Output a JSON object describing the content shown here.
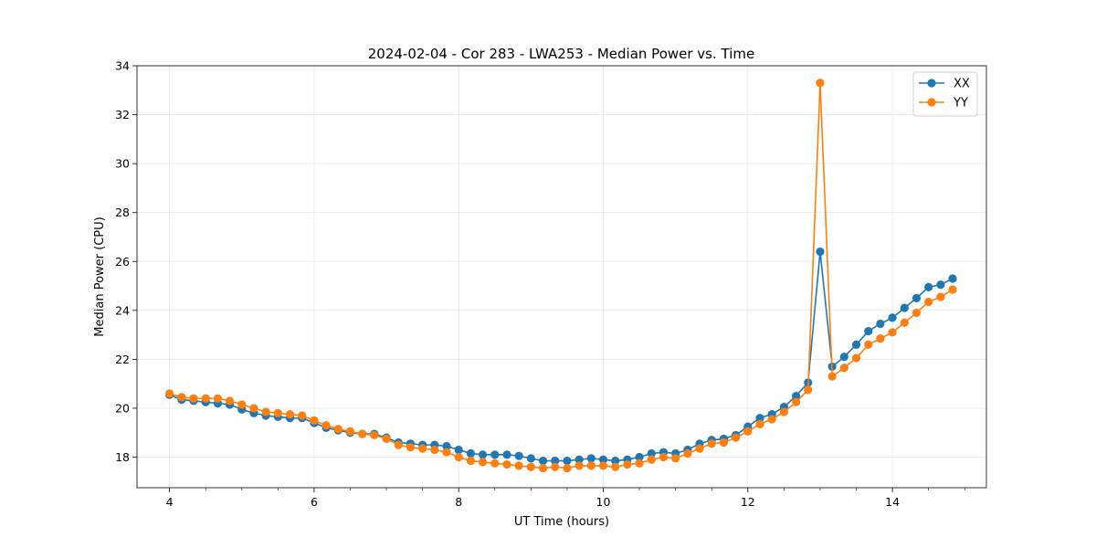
{
  "chart_data": {
    "type": "line",
    "title": "2024-02-04 - Cor 283 - LWA253 - Median Power vs. Time",
    "xlabel": "UT Time (hours)",
    "ylabel": "Median Power (CPU)",
    "xlim": [
      3.55,
      15.3
    ],
    "ylim": [
      16.75,
      34
    ],
    "xticks": [
      4,
      6,
      8,
      10,
      12,
      14
    ],
    "yticks": [
      18,
      20,
      22,
      24,
      26,
      28,
      30,
      32,
      34
    ],
    "x_minor_step": 0.5,
    "grid": true,
    "legend_position": "top-right",
    "x": [
      4.0,
      4.167,
      4.333,
      4.5,
      4.667,
      4.833,
      5.0,
      5.167,
      5.333,
      5.5,
      5.667,
      5.833,
      6.0,
      6.167,
      6.333,
      6.5,
      6.667,
      6.833,
      7.0,
      7.167,
      7.333,
      7.5,
      7.667,
      7.833,
      8.0,
      8.167,
      8.333,
      8.5,
      8.667,
      8.833,
      9.0,
      9.167,
      9.333,
      9.5,
      9.667,
      9.833,
      10.0,
      10.167,
      10.333,
      10.5,
      10.667,
      10.833,
      11.0,
      11.167,
      11.333,
      11.5,
      11.667,
      11.833,
      12.0,
      12.167,
      12.333,
      12.5,
      12.667,
      12.833,
      13.0,
      13.167,
      13.333,
      13.5,
      13.667,
      13.833,
      14.0,
      14.167,
      14.333,
      14.5,
      14.667,
      14.833
    ],
    "series": [
      {
        "name": "XX",
        "color": "#1f77b4",
        "values": [
          20.55,
          20.35,
          20.3,
          20.25,
          20.2,
          20.15,
          19.95,
          19.8,
          19.7,
          19.65,
          19.6,
          19.6,
          19.4,
          19.2,
          19.1,
          19.0,
          18.95,
          18.95,
          18.8,
          18.6,
          18.55,
          18.5,
          18.5,
          18.45,
          18.3,
          18.15,
          18.1,
          18.1,
          18.1,
          18.05,
          17.95,
          17.85,
          17.85,
          17.85,
          17.9,
          17.95,
          17.9,
          17.85,
          17.9,
          18.0,
          18.15,
          18.2,
          18.15,
          18.3,
          18.55,
          18.7,
          18.75,
          18.9,
          19.25,
          19.6,
          19.75,
          20.05,
          20.5,
          21.05,
          26.4,
          21.7,
          22.1,
          22.6,
          23.15,
          23.45,
          23.7,
          24.1,
          24.5,
          24.95,
          25.05,
          25.3
        ]
      },
      {
        "name": "YY",
        "color": "#ff7f0e",
        "values": [
          20.6,
          20.45,
          20.4,
          20.4,
          20.4,
          20.3,
          20.15,
          20.0,
          19.85,
          19.8,
          19.75,
          19.7,
          19.5,
          19.3,
          19.15,
          19.05,
          18.95,
          18.9,
          18.75,
          18.5,
          18.4,
          18.35,
          18.3,
          18.2,
          18.0,
          17.85,
          17.8,
          17.75,
          17.7,
          17.65,
          17.6,
          17.55,
          17.6,
          17.55,
          17.65,
          17.65,
          17.65,
          17.6,
          17.7,
          17.75,
          17.9,
          18.0,
          17.95,
          18.15,
          18.35,
          18.55,
          18.6,
          18.8,
          19.05,
          19.35,
          19.55,
          19.85,
          20.25,
          20.75,
          33.3,
          21.3,
          21.65,
          22.05,
          22.6,
          22.85,
          23.1,
          23.5,
          23.9,
          24.35,
          24.55,
          24.85
        ]
      }
    ]
  }
}
